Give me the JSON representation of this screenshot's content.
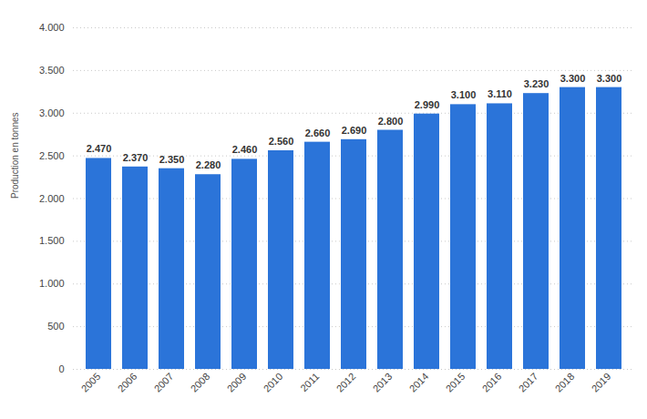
{
  "chart_data": {
    "type": "bar",
    "y_label": "Production en tonnes",
    "categories": [
      "2005",
      "2006",
      "2007",
      "2008",
      "2009",
      "2010",
      "2011",
      "2012",
      "2013",
      "2014",
      "2015",
      "2016",
      "2017",
      "2018",
      "2019"
    ],
    "values": [
      2470,
      2370,
      2350,
      2280,
      2460,
      2560,
      2660,
      2690,
      2800,
      2990,
      3100,
      3110,
      3230,
      3300,
      3300
    ],
    "value_labels": [
      "2.470",
      "2.370",
      "2.350",
      "2.280",
      "2.460",
      "2.560",
      "2.660",
      "2.690",
      "2.800",
      "2.990",
      "3.100",
      "3.110",
      "3.230",
      "3.300",
      "3.300"
    ],
    "data_labels": true,
    "color": "#2b74d9",
    "ylim": [
      0,
      4000
    ],
    "yticks": [
      0,
      500,
      {
        "value": 1000,
        "label": "1.000"
      },
      {
        "value": 1500,
        "label": "1.500"
      },
      {
        "value": 2000,
        "label": "2.000"
      },
      {
        "value": 2500,
        "label": "2.500"
      },
      {
        "value": 3000,
        "label": "3.000"
      },
      {
        "value": 3500,
        "label": "3.500"
      },
      {
        "value": 4000,
        "label": "4.000"
      }
    ],
    "grid": true
  }
}
